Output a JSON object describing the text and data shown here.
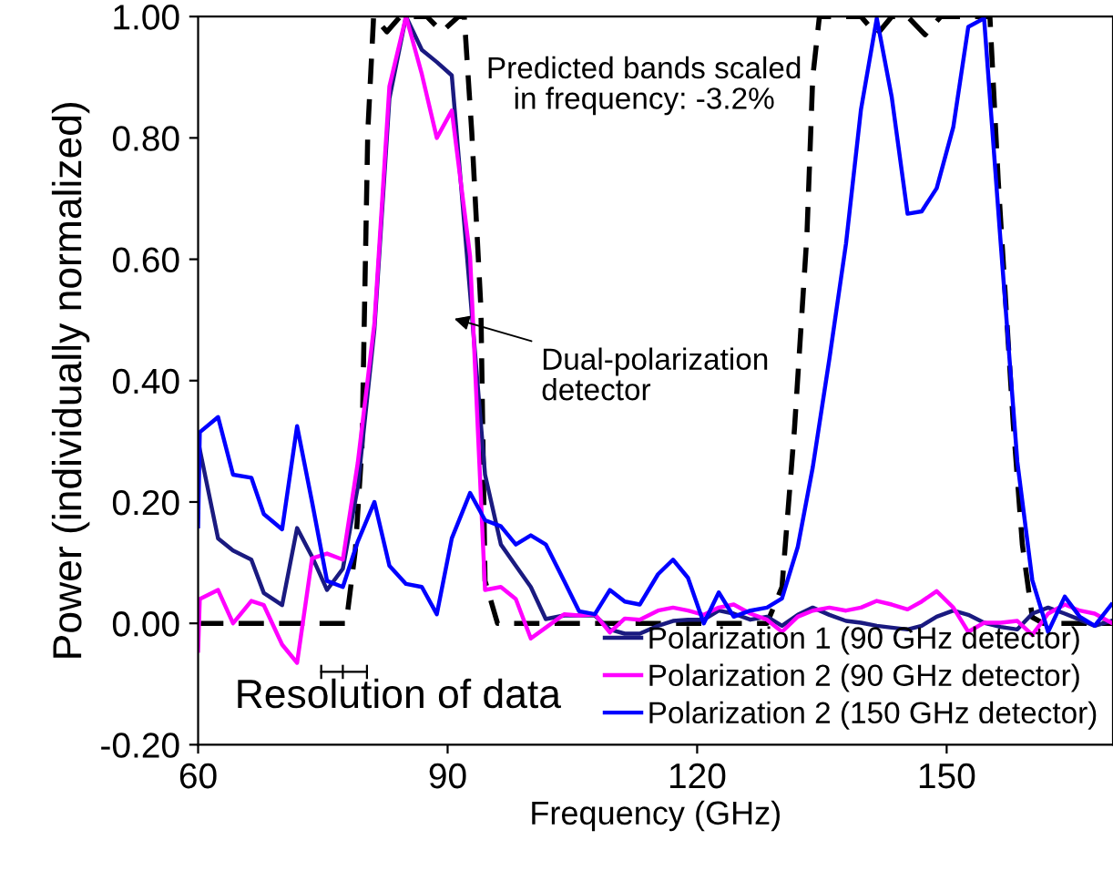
{
  "chart_data": {
    "type": "line",
    "xlabel": "Frequency (GHz)",
    "ylabel": "Power (individually normalized)",
    "xlim": [
      60,
      170
    ],
    "xticks": [
      60,
      90,
      120,
      150
    ],
    "ylim": [
      -0.2,
      1.0
    ],
    "yticks": [
      {
        "value": -0.2,
        "label": "-0.20"
      },
      {
        "value": 0,
        "label": "0.00"
      },
      {
        "value": 0.2,
        "label": "0.20"
      },
      {
        "value": 0.4,
        "label": "0.40"
      },
      {
        "value": 0.6,
        "label": "0.60"
      },
      {
        "value": 0.8,
        "label": "0.80"
      },
      {
        "value": 1.0,
        "label": "1.00"
      }
    ],
    "grid": false,
    "legend": "bottom right",
    "marker": "none",
    "series": [
      {
        "color": "#000000",
        "line_style": "dashed",
        "x": [
          60,
          77.8,
          78.9,
          79.7,
          80.4,
          81.1,
          82.7,
          84.3,
          87.5,
          89.3,
          91.3,
          92.0,
          92.9,
          94.0,
          94.5,
          96.0,
          128.4,
          130.2,
          131.7,
          133.2,
          133.9,
          134.7,
          139.7,
          141.6,
          143.4,
          145.3,
          147.4,
          149.3,
          152.3,
          155.2,
          156.2,
          158.0,
          159.1,
          160.3,
          161.6,
          170
        ],
        "values": [
          0,
          0,
          0.12,
          0.29,
          0.81,
          1.0,
          0.975,
          1.0,
          1.0,
          0.975,
          1.0,
          1.0,
          0.81,
          0.52,
          0.07,
          0,
          0,
          0.06,
          0.32,
          0.64,
          0.9,
          1.0,
          1.0,
          0.97,
          1.0,
          1.0,
          0.97,
          1.0,
          1.0,
          1.0,
          0.73,
          0.33,
          0.13,
          0.01,
          0,
          0
        ]
      },
      {
        "name": "Polarization 1 (90 GHz detector)",
        "color": "#1a1a80",
        "x": [
          60,
          62.4,
          64.2,
          66.4,
          67.9,
          70.1,
          71.9,
          73.7,
          75.5,
          77.4,
          79.2,
          81.2,
          83.0,
          85.0,
          86.9,
          88.7,
          90.5,
          92.7,
          94.5,
          96.4,
          98.2,
          100.0,
          101.8,
          104.0,
          105.8,
          107.7,
          109.5,
          111.3,
          113.1,
          115.3,
          117.1,
          118.9,
          120.8,
          122.6,
          124.4,
          126.4,
          128.4,
          130.2,
          132.1,
          133.9,
          135.9,
          137.9,
          139.7,
          141.6,
          143.4,
          145.3,
          147.0,
          148.8,
          150.8,
          152.6,
          154.5,
          156.5,
          158.5,
          160.3,
          162.2,
          164.2,
          166.0,
          167.8,
          169.8
        ],
        "values": [
          0.3,
          0.14,
          0.12,
          0.105,
          0.05,
          0.03,
          0.157,
          0.11,
          0.055,
          0.09,
          0.225,
          0.485,
          0.865,
          1.0,
          0.945,
          0.925,
          0.903,
          0.545,
          0.245,
          0.13,
          0.095,
          0.06,
          0.007,
          0.013,
          0.013,
          0.013,
          -0.01,
          -0.017,
          -0.017,
          -0.004,
          0.004,
          0.006,
          0.006,
          0.021,
          0.016,
          0.006,
          0.011,
          -0.004,
          0.014,
          0.026,
          0.014,
          0.004,
          0.001,
          -0.004,
          -0.007,
          -0.01,
          -0.004,
          0.011,
          0.021,
          0.014,
          0.001,
          -0.006,
          -0.01,
          0.016,
          0.026,
          0.016,
          0.006,
          -0.004,
          0.004
        ]
      },
      {
        "name": "Polarization 2 (90 GHz detector)",
        "color": "#ff00ff",
        "x": [
          60,
          60.2,
          62.4,
          64.2,
          66.4,
          67.9,
          70.1,
          71.9,
          73.7,
          75.5,
          77.4,
          79.2,
          81.2,
          83.0,
          85.0,
          86.9,
          88.7,
          90.5,
          92.7,
          94.5,
          96.4,
          98.2,
          100.0,
          101.8,
          104.0,
          105.8,
          107.7,
          109.5,
          111.3,
          113.1,
          115.3,
          117.1,
          118.9,
          120.8,
          122.6,
          124.4,
          126.4,
          128.4,
          130.2,
          132.1,
          133.9,
          135.9,
          137.9,
          139.7,
          141.6,
          143.4,
          145.3,
          147.0,
          148.8,
          150.8,
          152.6,
          154.5,
          156.5,
          158.5,
          160.3,
          162.2,
          164.2,
          166.0,
          167.8,
          169.8
        ],
        "values": [
          -0.045,
          0.04,
          0.055,
          0.0,
          0.037,
          0.03,
          -0.035,
          -0.065,
          0.107,
          0.115,
          0.105,
          0.265,
          0.495,
          0.885,
          1.0,
          0.905,
          0.8,
          0.845,
          0.605,
          0.055,
          0.06,
          0.04,
          -0.025,
          -0.007,
          0.015,
          0.013,
          0.015,
          -0.015,
          0.008,
          0.006,
          0.021,
          0.026,
          0.021,
          0.014,
          0.026,
          0.031,
          0.016,
          0.006,
          -0.014,
          0.011,
          0.021,
          0.026,
          0.021,
          0.026,
          0.037,
          0.031,
          0.023,
          0.036,
          0.053,
          0.026,
          -0.014,
          0.001,
          0.001,
          0.004,
          -0.019,
          0.016,
          0.031,
          0.021,
          0.016,
          0.001
        ]
      },
      {
        "name": "Polarization 2 (150 GHz detector)",
        "color": "#0000ff",
        "x": [
          60,
          60.2,
          62.4,
          64.2,
          66.4,
          67.9,
          70.1,
          71.9,
          73.7,
          75.5,
          77.4,
          79.2,
          81.2,
          83.0,
          85.0,
          86.9,
          88.7,
          90.5,
          92.7,
          94.5,
          96.4,
          98.2,
          100.0,
          101.8,
          104.0,
          105.8,
          107.7,
          109.5,
          111.3,
          113.1,
          115.3,
          117.1,
          118.9,
          120.8,
          122.6,
          124.4,
          126.4,
          128.4,
          130.2,
          132.1,
          133.9,
          135.9,
          137.9,
          139.7,
          141.6,
          143.4,
          145.3,
          147.0,
          148.8,
          150.8,
          152.6,
          154.5,
          156.5,
          158.5,
          160.3,
          162.2,
          164.2,
          166.0,
          167.8,
          169.8
        ],
        "values": [
          0.16,
          0.315,
          0.34,
          0.245,
          0.24,
          0.18,
          0.155,
          0.325,
          0.2,
          0.07,
          0.06,
          0.135,
          0.2,
          0.095,
          0.065,
          0.06,
          0.015,
          0.14,
          0.215,
          0.17,
          0.16,
          0.13,
          0.145,
          0.13,
          0.07,
          0.02,
          0.015,
          0.055,
          0.036,
          0.031,
          0.081,
          0.105,
          0.075,
          0.0,
          0.051,
          0.011,
          0.021,
          0.026,
          0.041,
          0.126,
          0.257,
          0.436,
          0.626,
          0.847,
          0.997,
          0.867,
          0.675,
          0.679,
          0.717,
          0.818,
          0.983,
          0.997,
          0.626,
          0.266,
          0.071,
          -0.014,
          0.044,
          0.011,
          -0.004,
          0.031
        ]
      }
    ],
    "annotations": [
      "Predicted bands scaled\nin frequency: -3.2%",
      "Dual-polarization\ndetector",
      "Resolution of data"
    ]
  }
}
